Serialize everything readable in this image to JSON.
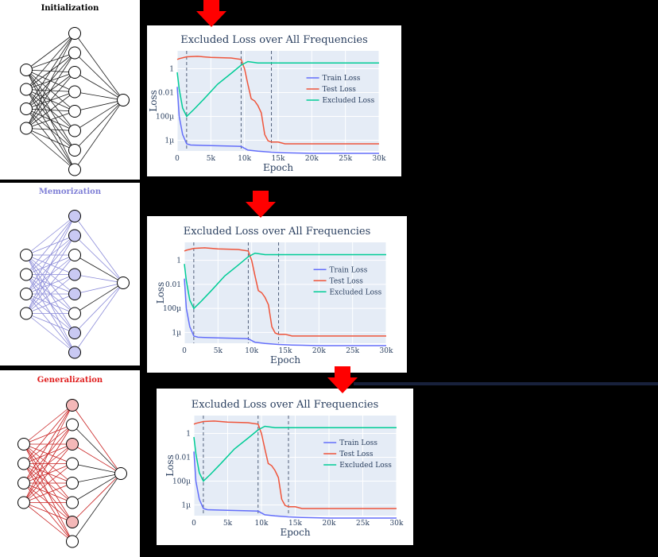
{
  "stages": [
    {
      "label": "Initialization",
      "color": "#000000",
      "edge_color": "#1a1a1a",
      "hidden_fill": "#ffffff"
    },
    {
      "label": "Memorization",
      "color": "#7f7fd6",
      "edge_color": "#8a8ad8",
      "hidden_fill": "#c9c9f3"
    },
    {
      "label": "Generalization",
      "color": "#e01e1e",
      "edge_color": "#c81e1e",
      "hidden_fill": "#f4b8b8"
    }
  ],
  "colors": {
    "train": "#636efa",
    "test": "#ef553b",
    "excluded": "#00cc96",
    "plot_bg": "#e5ecf6",
    "arrow": "#ff0000"
  },
  "chart_data": [
    {
      "type": "line",
      "title": "Excluded Loss over All Frequencies",
      "xlabel": "Epoch",
      "ylabel": "Loss",
      "y_scale": "log",
      "xlim": [
        0,
        30000
      ],
      "ylim_log10": [
        -6.9,
        1.5
      ],
      "x_ticks": [
        0,
        5000,
        10000,
        15000,
        20000,
        25000,
        30000
      ],
      "x_tick_labels": [
        "0",
        "5k",
        "10k",
        "15k",
        "20k",
        "25k",
        "30k"
      ],
      "y_ticks_log10": [
        0,
        -2,
        -4,
        -6
      ],
      "y_tick_labels": [
        "1",
        "0.01",
        "100µ",
        "1µ"
      ],
      "vlines": [
        1400,
        9500,
        14000
      ],
      "legend_position": "center-right",
      "series": [
        {
          "name": "Train Loss",
          "x": [
            0,
            300,
            800,
            1400,
            2000,
            5000,
            8000,
            9500,
            10500,
            12000,
            14000,
            16000,
            20000,
            25000,
            30000
          ],
          "y": [
            0.03,
            0.0001,
            3e-06,
            5e-07,
            4e-07,
            3.5e-07,
            3.2e-07,
            3e-07,
            1.5e-07,
            1.2e-07,
            1e-07,
            9e-08,
            8e-08,
            8e-08,
            8e-08
          ]
        },
        {
          "name": "Test Loss",
          "x": [
            0,
            300,
            1400,
            3000,
            5000,
            8000,
            9500,
            10000,
            10500,
            11000,
            11500,
            12000,
            12500,
            13000,
            13500,
            14000,
            15000,
            16000,
            18000,
            20000,
            25000,
            30000
          ],
          "y": [
            6,
            7,
            10,
            11,
            9,
            8,
            6,
            1,
            0.05,
            0.003,
            0.002,
            0.0008,
            0.0002,
            3e-06,
            9e-07,
            7e-07,
            7e-07,
            5e-07,
            5e-07,
            5e-07,
            5e-07,
            5e-07
          ]
        },
        {
          "name": "Excluded Loss",
          "x": [
            0,
            300,
            800,
            1400,
            2500,
            4000,
            6000,
            8000,
            9500,
            10500,
            12000,
            14000,
            16000,
            20000,
            25000,
            30000
          ],
          "y": [
            0.5,
            0.02,
            0.0005,
            0.0001,
            0.0004,
            0.003,
            0.05,
            0.4,
            2,
            4,
            3,
            3,
            3,
            3,
            3,
            3
          ]
        }
      ]
    },
    {
      "type": "line",
      "title": "Excluded Loss over All Frequencies",
      "xlabel": "Epoch",
      "ylabel": "Loss",
      "y_scale": "log",
      "xlim": [
        0,
        30000
      ],
      "ylim_log10": [
        -6.9,
        1.5
      ],
      "x_ticks": [
        0,
        5000,
        10000,
        15000,
        20000,
        25000,
        30000
      ],
      "x_tick_labels": [
        "0",
        "5k",
        "10k",
        "15k",
        "20k",
        "25k",
        "30k"
      ],
      "y_ticks_log10": [
        0,
        -2,
        -4,
        -6
      ],
      "y_tick_labels": [
        "1",
        "0.01",
        "100µ",
        "1µ"
      ],
      "vlines": [
        1400,
        9500,
        14000
      ],
      "legend_position": "center-right",
      "series": [
        {
          "name": "Train Loss",
          "x": [
            0,
            300,
            800,
            1400,
            2000,
            5000,
            8000,
            9500,
            10500,
            12000,
            14000,
            16000,
            20000,
            25000,
            30000
          ],
          "y": [
            0.03,
            0.0001,
            3e-06,
            5e-07,
            4e-07,
            3.5e-07,
            3.2e-07,
            3e-07,
            1.5e-07,
            1.2e-07,
            1e-07,
            9e-08,
            8e-08,
            8e-08,
            8e-08
          ]
        },
        {
          "name": "Test Loss",
          "x": [
            0,
            300,
            1400,
            3000,
            5000,
            8000,
            9500,
            10000,
            10500,
            11000,
            11500,
            12000,
            12500,
            13000,
            13500,
            14000,
            15000,
            16000,
            18000,
            20000,
            25000,
            30000
          ],
          "y": [
            6,
            7,
            10,
            11,
            9,
            8,
            6,
            1,
            0.05,
            0.003,
            0.002,
            0.0008,
            0.0002,
            3e-06,
            9e-07,
            7e-07,
            7e-07,
            5e-07,
            5e-07,
            5e-07,
            5e-07,
            5e-07
          ]
        },
        {
          "name": "Excluded Loss",
          "x": [
            0,
            300,
            800,
            1400,
            2500,
            4000,
            6000,
            8000,
            9500,
            10500,
            12000,
            14000,
            16000,
            20000,
            25000,
            30000
          ],
          "y": [
            0.5,
            0.02,
            0.0005,
            0.0001,
            0.0004,
            0.003,
            0.05,
            0.4,
            2,
            4,
            3,
            3,
            3,
            3,
            3,
            3
          ]
        }
      ]
    },
    {
      "type": "line",
      "title": "Excluded Loss over All Frequencies",
      "xlabel": "Epoch",
      "ylabel": "Loss",
      "y_scale": "log",
      "xlim": [
        0,
        30000
      ],
      "ylim_log10": [
        -6.9,
        1.5
      ],
      "x_ticks": [
        0,
        5000,
        10000,
        15000,
        20000,
        25000,
        30000
      ],
      "x_tick_labels": [
        "0",
        "5k",
        "10k",
        "15k",
        "20k",
        "25k",
        "30k"
      ],
      "y_ticks_log10": [
        0,
        -2,
        -4,
        -6
      ],
      "y_tick_labels": [
        "1",
        "0.01",
        "100µ",
        "1µ"
      ],
      "vlines": [
        1400,
        9500,
        14000
      ],
      "legend_position": "center-right",
      "series": [
        {
          "name": "Train Loss",
          "x": [
            0,
            300,
            800,
            1400,
            2000,
            5000,
            8000,
            9500,
            10500,
            12000,
            14000,
            16000,
            20000,
            25000,
            30000
          ],
          "y": [
            0.03,
            0.0001,
            3e-06,
            5e-07,
            4e-07,
            3.5e-07,
            3.2e-07,
            3e-07,
            1.5e-07,
            1.2e-07,
            1e-07,
            9e-08,
            8e-08,
            8e-08,
            8e-08
          ]
        },
        {
          "name": "Test Loss",
          "x": [
            0,
            300,
            1400,
            3000,
            5000,
            8000,
            9500,
            10000,
            10500,
            11000,
            11500,
            12000,
            12500,
            13000,
            13500,
            14000,
            15000,
            16000,
            18000,
            20000,
            25000,
            30000
          ],
          "y": [
            6,
            7,
            10,
            11,
            9,
            8,
            6,
            1,
            0.05,
            0.003,
            0.002,
            0.0008,
            0.0002,
            3e-06,
            9e-07,
            7e-07,
            7e-07,
            5e-07,
            5e-07,
            5e-07,
            5e-07,
            5e-07
          ]
        },
        {
          "name": "Excluded Loss",
          "x": [
            0,
            300,
            800,
            1400,
            2500,
            4000,
            6000,
            8000,
            9500,
            10500,
            12000,
            14000,
            16000,
            20000,
            25000,
            30000
          ],
          "y": [
            0.5,
            0.02,
            0.0005,
            0.0001,
            0.0004,
            0.003,
            0.05,
            0.4,
            2,
            4,
            3,
            3,
            3,
            3,
            3,
            3
          ]
        }
      ]
    }
  ]
}
